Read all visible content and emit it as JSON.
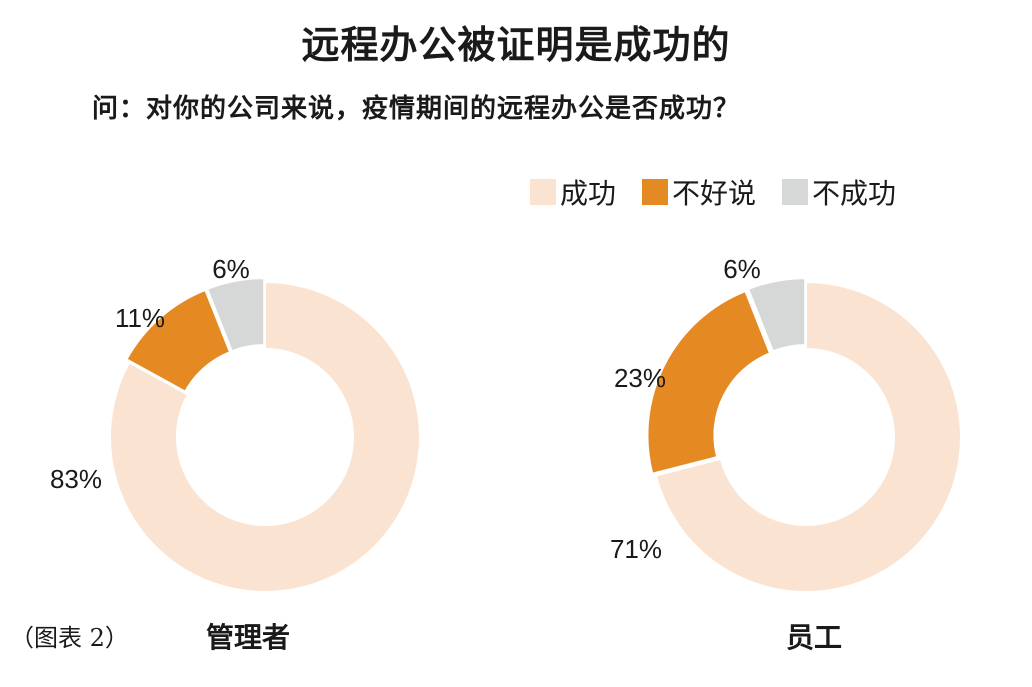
{
  "title": "远程办公被证明是成功的",
  "question": "问：对你的公司来说，疫情期间的远程办公是否成功？",
  "caption": "（图表 2）",
  "colors": {
    "success": "#fbe3d2",
    "unsure": "#e58a22",
    "fail": "#d6d8d8"
  },
  "chart_data": [
    {
      "type": "pie",
      "title": "管理者",
      "categories": [
        "成功",
        "不好说",
        "不成功"
      ],
      "values": [
        83,
        11,
        6
      ],
      "labels": [
        "83%",
        "11%",
        "6%"
      ]
    },
    {
      "type": "pie",
      "title": "员工",
      "categories": [
        "成功",
        "不好说",
        "不成功"
      ],
      "values": [
        71,
        23,
        6
      ],
      "labels": [
        "71%",
        "23%",
        "6%"
      ]
    }
  ]
}
